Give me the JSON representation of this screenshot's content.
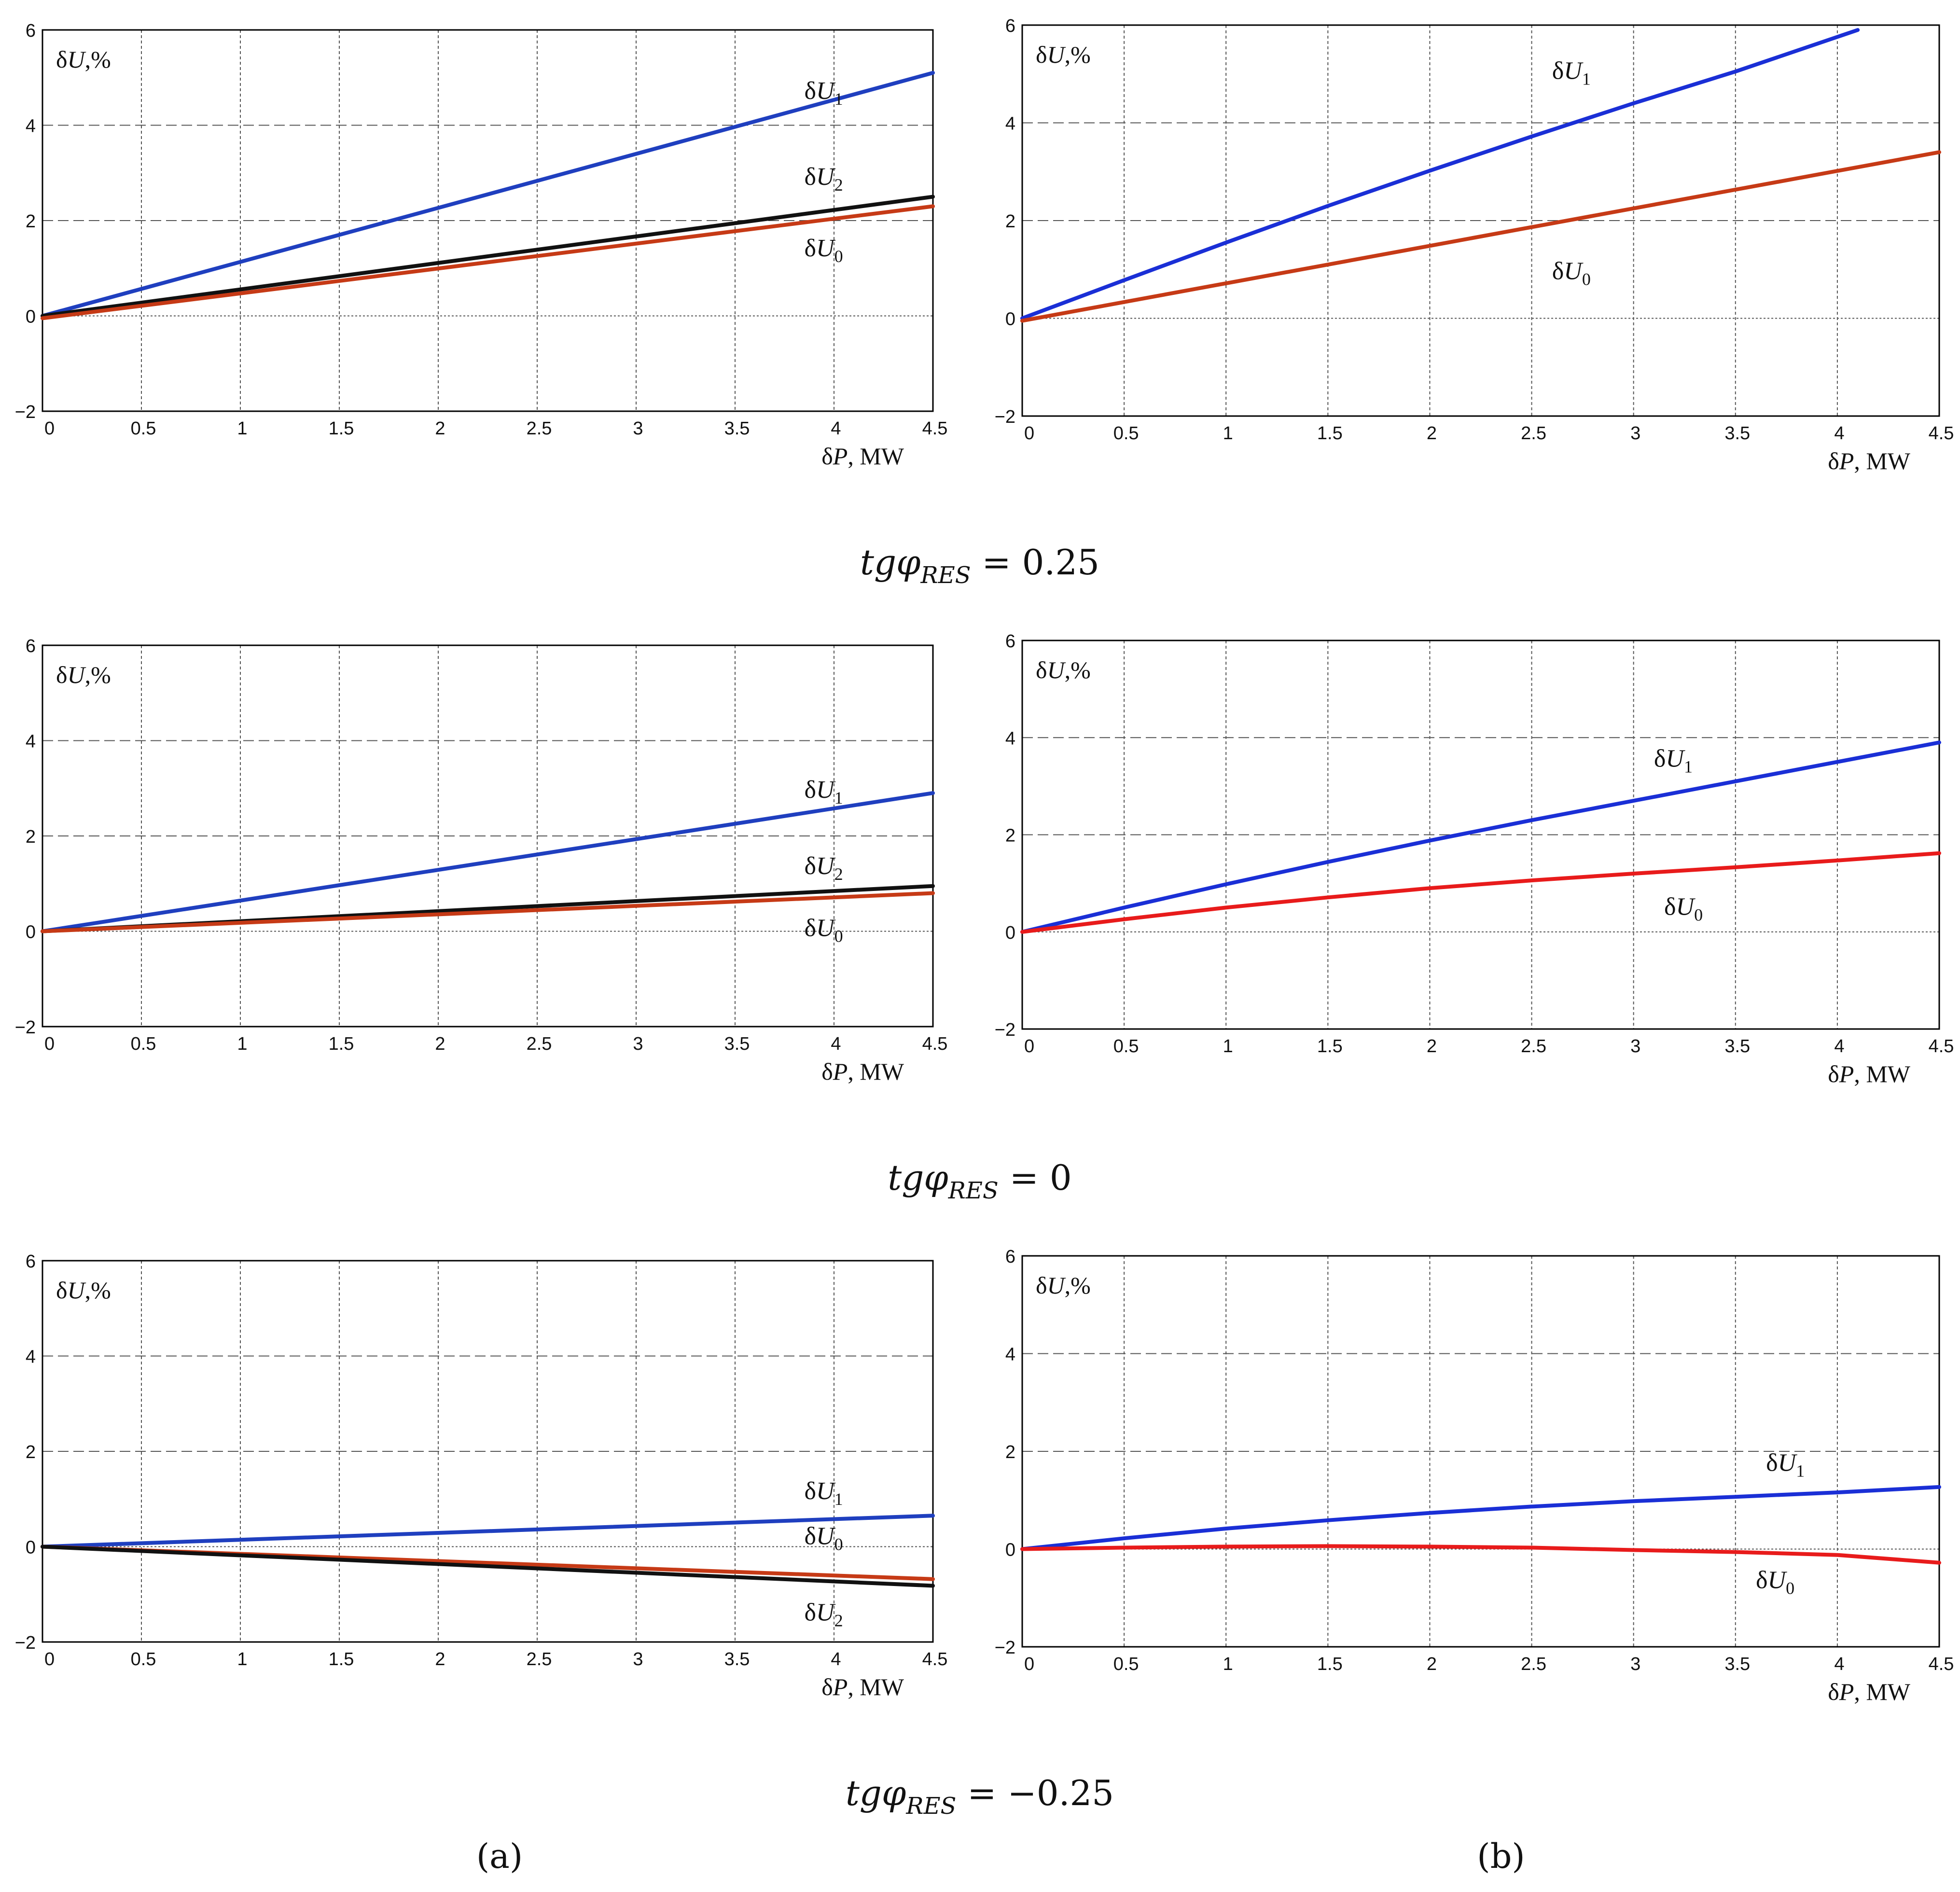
{
  "figure": {
    "captions": [
      {
        "text": "tgφRES = 0.25",
        "main": "tgφ",
        "sub": "RES",
        "rest": " = 0.25"
      },
      {
        "text": "tgφRES = 0",
        "main": "tgφ",
        "sub": "RES",
        "rest": " = 0"
      },
      {
        "text": "tgφRES = −0.25",
        "main": "tgφ",
        "sub": "RES",
        "rest": " = −0.25"
      }
    ],
    "panel_labels": {
      "a": "(a)",
      "b": "(b)"
    }
  },
  "colors": {
    "dU1": "#1f3fbf",
    "dU1_b": "#1a2fd6",
    "dU2": "#111111",
    "dU0": "#c63a16",
    "dU0_red": "#e81b1b",
    "grid": "#555555",
    "frame": "#000000"
  },
  "chart_data": [
    {
      "type": "line",
      "id": "row1-a",
      "row": 0,
      "col": 0,
      "ylabel": "δU,%",
      "xlabel": "δP, MW",
      "xlim": [
        0,
        4.5
      ],
      "ylim": [
        -2,
        6
      ],
      "xticks": [
        "0",
        "0.5",
        "1",
        "1.5",
        "2",
        "2.5",
        "3",
        "3.5",
        "4",
        "4.5"
      ],
      "yticks": [
        "−2",
        "0",
        "2",
        "4",
        "6"
      ],
      "series": [
        {
          "name": "δU1",
          "base": "δU",
          "sub": "1",
          "color": "dU1",
          "x": [
            0,
            4.5
          ],
          "y": [
            0,
            5.1
          ],
          "label_at": [
            3.85,
            4.55
          ]
        },
        {
          "name": "δU2",
          "base": "δU",
          "sub": "2",
          "color": "dU2",
          "x": [
            0,
            4.5
          ],
          "y": [
            0,
            2.5
          ],
          "label_at": [
            3.85,
            2.75
          ]
        },
        {
          "name": "δU0",
          "base": "δU",
          "sub": "0",
          "color": "dU0",
          "x": [
            0,
            4.5
          ],
          "y": [
            -0.05,
            2.3
          ],
          "label_at": [
            3.85,
            1.25
          ]
        }
      ]
    },
    {
      "type": "line",
      "id": "row1-b",
      "row": 0,
      "col": 1,
      "ylabel": "δU,%",
      "xlabel": "δP, MW",
      "xlim": [
        0,
        4.5
      ],
      "ylim": [
        -2,
        6
      ],
      "xticks": [
        "0",
        "0.5",
        "1",
        "1.5",
        "2",
        "2.5",
        "3",
        "3.5",
        "4",
        "4.5"
      ],
      "yticks": [
        "−2",
        "0",
        "2",
        "4",
        "6"
      ],
      "series": [
        {
          "name": "δU1",
          "base": "δU",
          "sub": "1",
          "color": "dU1_b",
          "x": [
            0,
            0.5,
            1,
            1.5,
            2,
            2.5,
            3,
            3.5,
            4.1
          ],
          "y": [
            0,
            0.78,
            1.55,
            2.3,
            3.02,
            3.72,
            4.4,
            5.05,
            5.9
          ],
          "label_at": [
            2.6,
            4.9
          ]
        },
        {
          "name": "δU0",
          "base": "δU",
          "sub": "0",
          "color": "dU0",
          "x": [
            0,
            4.5
          ],
          "y": [
            -0.05,
            3.4
          ],
          "label_at": [
            2.6,
            0.8
          ]
        }
      ]
    },
    {
      "type": "line",
      "id": "row2-a",
      "row": 1,
      "col": 0,
      "ylabel": "δU,%",
      "xlabel": "δP, MW",
      "xlim": [
        0,
        4.5
      ],
      "ylim": [
        -2,
        6
      ],
      "xticks": [
        "0",
        "0.5",
        "1",
        "1.5",
        "2",
        "2.5",
        "3",
        "3.5",
        "4",
        "4.5"
      ],
      "yticks": [
        "−2",
        "0",
        "2",
        "4",
        "6"
      ],
      "series": [
        {
          "name": "δU1",
          "base": "δU",
          "sub": "1",
          "color": "dU1",
          "x": [
            0,
            4.5
          ],
          "y": [
            0,
            2.9
          ],
          "label_at": [
            3.85,
            2.8
          ]
        },
        {
          "name": "δU2",
          "base": "δU",
          "sub": "2",
          "color": "dU2",
          "x": [
            0,
            4.5
          ],
          "y": [
            0,
            0.95
          ],
          "label_at": [
            3.85,
            1.2
          ]
        },
        {
          "name": "δU0",
          "base": "δU",
          "sub": "0",
          "color": "dU0",
          "x": [
            0,
            4.5
          ],
          "y": [
            0,
            0.8
          ],
          "label_at": [
            3.85,
            -0.1
          ]
        }
      ]
    },
    {
      "type": "line",
      "id": "row2-b",
      "row": 1,
      "col": 1,
      "ylabel": "δU,%",
      "xlabel": "δP, MW",
      "xlim": [
        0,
        4.5
      ],
      "ylim": [
        -2,
        6
      ],
      "xticks": [
        "0",
        "0.5",
        "1",
        "1.5",
        "2",
        "2.5",
        "3",
        "3.5",
        "4",
        "4.5"
      ],
      "yticks": [
        "−2",
        "0",
        "2",
        "4",
        "6"
      ],
      "series": [
        {
          "name": "δU1",
          "base": "δU",
          "sub": "1",
          "color": "dU1_b",
          "x": [
            0,
            0.5,
            1,
            1.5,
            2,
            2.5,
            3,
            3.5,
            4,
            4.5
          ],
          "y": [
            0,
            0.5,
            0.98,
            1.44,
            1.88,
            2.3,
            2.7,
            3.1,
            3.5,
            3.9
          ],
          "label_at": [
            3.1,
            3.4
          ]
        },
        {
          "name": "δU0",
          "base": "δU",
          "sub": "0",
          "color": "dU0_red",
          "x": [
            0,
            0.5,
            1,
            1.5,
            2,
            2.5,
            3,
            3.5,
            4,
            4.5
          ],
          "y": [
            0,
            0.26,
            0.5,
            0.71,
            0.9,
            1.06,
            1.2,
            1.33,
            1.47,
            1.62
          ],
          "label_at": [
            3.15,
            0.35
          ]
        }
      ]
    },
    {
      "type": "line",
      "id": "row3-a",
      "row": 2,
      "col": 0,
      "ylabel": "δU,%",
      "xlabel": "δP, MW",
      "xlim": [
        0,
        4.5
      ],
      "ylim": [
        -2,
        6
      ],
      "xticks": [
        "0",
        "0.5",
        "1",
        "1.5",
        "2",
        "2.5",
        "3",
        "3.5",
        "4",
        "4.5"
      ],
      "yticks": [
        "−2",
        "0",
        "2",
        "4",
        "6"
      ],
      "series": [
        {
          "name": "δU1",
          "base": "δU",
          "sub": "1",
          "color": "dU1",
          "x": [
            0,
            4.5
          ],
          "y": [
            0,
            0.65
          ],
          "label_at": [
            3.85,
            1.0
          ]
        },
        {
          "name": "δU0",
          "base": "δU",
          "sub": "0",
          "color": "dU0",
          "x": [
            0,
            4.5
          ],
          "y": [
            0,
            -0.68
          ],
          "label_at": [
            3.85,
            0.05
          ]
        },
        {
          "name": "δU2",
          "base": "δU",
          "sub": "2",
          "color": "dU2",
          "x": [
            0,
            4.5
          ],
          "y": [
            0,
            -0.82
          ],
          "label_at": [
            3.85,
            -1.55
          ]
        }
      ]
    },
    {
      "type": "line",
      "id": "row3-b",
      "row": 2,
      "col": 1,
      "ylabel": "δU,%",
      "xlabel": "δP, MW",
      "xlim": [
        0,
        4.5
      ],
      "ylim": [
        -2,
        6
      ],
      "xticks": [
        "0",
        "0.5",
        "1",
        "1.5",
        "2",
        "2.5",
        "3",
        "3.5",
        "4",
        "4.5"
      ],
      "yticks": [
        "−2",
        "0",
        "2",
        "4",
        "6"
      ],
      "series": [
        {
          "name": "δU1",
          "base": "δU",
          "sub": "1",
          "color": "dU1_b",
          "x": [
            0,
            0.5,
            1,
            1.5,
            2,
            2.5,
            3,
            3.5,
            4,
            4.5
          ],
          "y": [
            0,
            0.22,
            0.42,
            0.59,
            0.74,
            0.87,
            0.98,
            1.07,
            1.16,
            1.27
          ],
          "label_at": [
            3.65,
            1.6
          ]
        },
        {
          "name": "δU0",
          "base": "δU",
          "sub": "0",
          "color": "dU0_red",
          "x": [
            0,
            0.5,
            1,
            1.5,
            2,
            2.5,
            3,
            3.5,
            4,
            4.5
          ],
          "y": [
            0,
            0.03,
            0.05,
            0.06,
            0.05,
            0.03,
            -0.02,
            -0.06,
            -0.12,
            -0.28
          ],
          "label_at": [
            3.6,
            -0.8
          ]
        }
      ]
    }
  ]
}
